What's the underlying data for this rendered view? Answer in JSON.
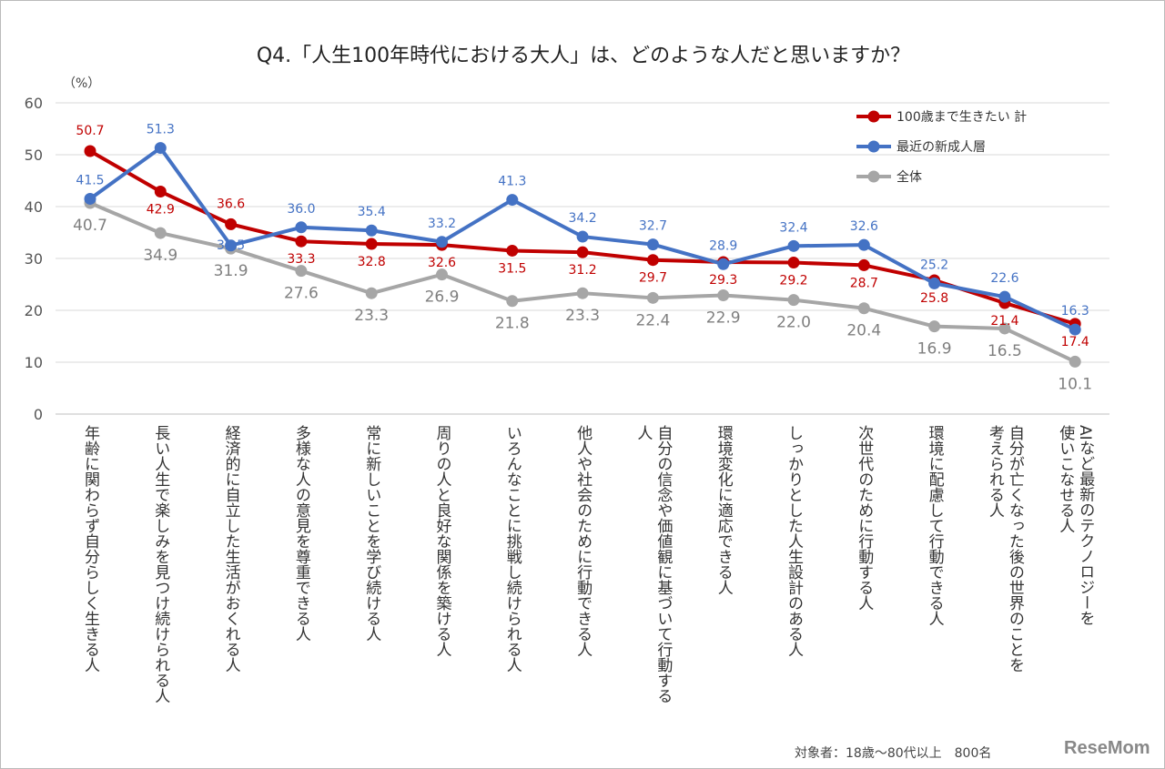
{
  "chart_data": {
    "type": "line",
    "title": "Q4.「人生100年時代における大人」は、どのような人だと思いますか？",
    "ylabel": "（%）",
    "ylim": [
      0,
      60
    ],
    "yticks": [
      0,
      10,
      20,
      30,
      40,
      50,
      60
    ],
    "grid": true,
    "legend": "top-right",
    "categories": [
      "年齢に関わらず自分らしく生きる人",
      "長い人生で楽しみを見つけ続けられる人",
      "経済的に自立した生活がおくれる人",
      "多様な人の意見を尊重できる人",
      "常に新しいことを学び続ける人",
      "周りの人と良好な関係を築ける人",
      "いろんなことに挑戦し続けられる人",
      "他人や社会のために行動できる人",
      "自分の信念や価値観に基づいて行動する\n人",
      "環境変化に適応できる人",
      "しっかりとした人生設計のある人",
      "次世代のために行動する人",
      "環境に配慮して行動できる人",
      "自分が亡くなった後の世界のことを\n考えられる人",
      "AIなど最新のテクノロジーを\n使いこなせる人"
    ],
    "series": [
      {
        "name": "100歳まで生きたい 計",
        "color": "#c00000",
        "values": [
          50.7,
          42.9,
          36.6,
          33.3,
          32.8,
          32.6,
          31.5,
          31.2,
          29.7,
          29.3,
          29.2,
          28.7,
          25.8,
          21.4,
          17.4
        ]
      },
      {
        "name": "最近の新成人層",
        "color": "#4472c4",
        "values": [
          41.5,
          51.3,
          32.5,
          36.0,
          35.4,
          33.2,
          41.3,
          34.2,
          32.7,
          28.9,
          32.4,
          32.6,
          25.2,
          22.6,
          16.3
        ]
      },
      {
        "name": "全体",
        "color": "#a6a6a6",
        "values": [
          40.7,
          34.9,
          31.9,
          27.6,
          23.3,
          26.9,
          21.8,
          23.3,
          22.4,
          22.9,
          22.0,
          20.4,
          16.9,
          16.5,
          10.1
        ]
      }
    ]
  },
  "note": "対象者：18歳～80代以上　800名",
  "logo": "ReseMom"
}
